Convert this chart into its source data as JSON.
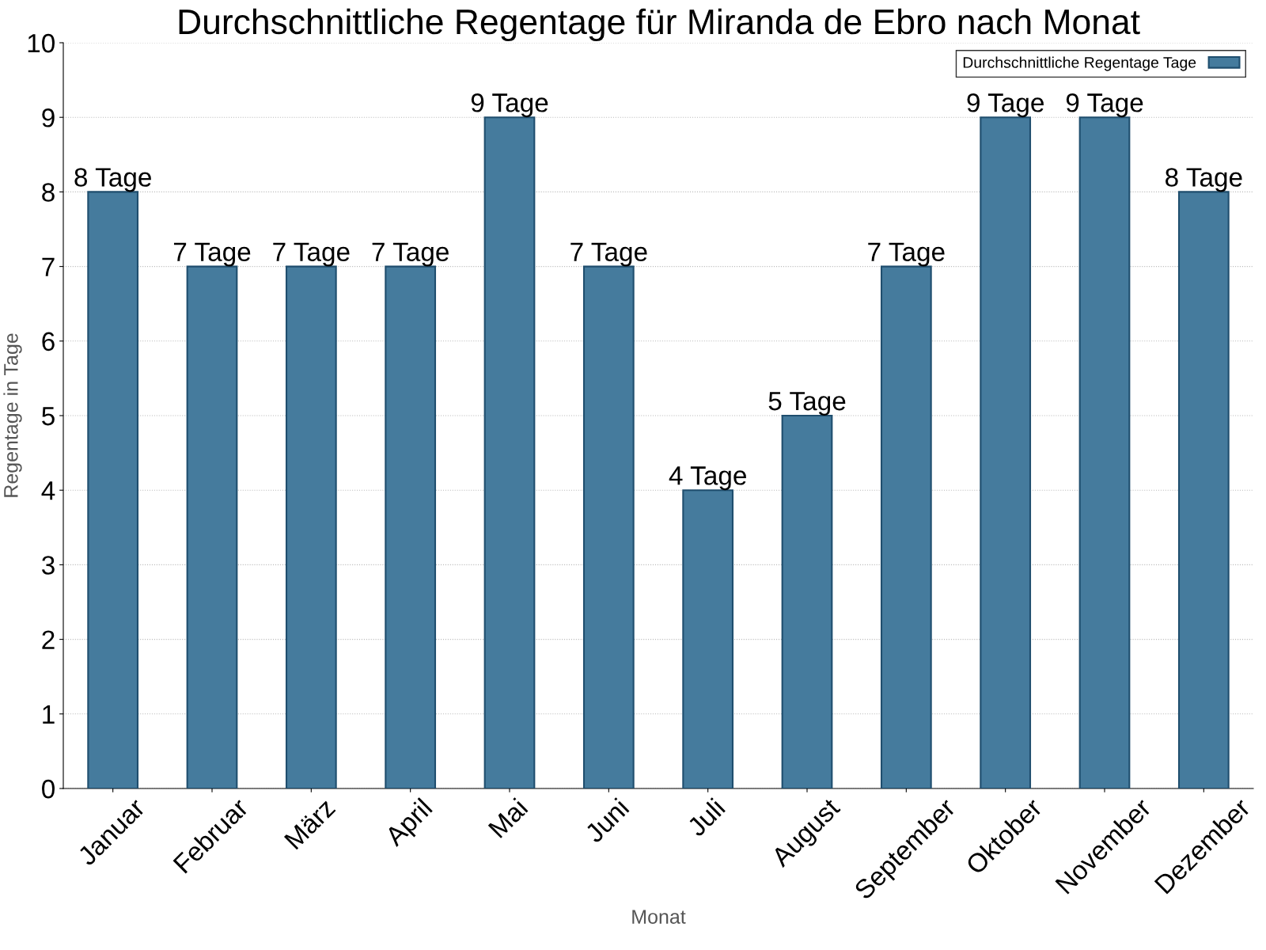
{
  "chart_data": {
    "type": "bar",
    "title": "Durchschnittliche Regentage für Miranda de Ebro nach Monat",
    "xlabel": "Monat",
    "ylabel": "Regentage in Tage",
    "categories": [
      "Januar",
      "Februar",
      "März",
      "April",
      "Mai",
      "Juni",
      "Juli",
      "August",
      "September",
      "Oktober",
      "November",
      "Dezember"
    ],
    "series": [
      {
        "name": "Durchschnittliche Regentage Tage",
        "color": "#457b9d",
        "values": [
          8,
          7,
          7,
          7,
          9,
          7,
          4,
          5,
          7,
          9,
          9,
          8
        ],
        "value_labels": [
          "8 Tage",
          "7 Tage",
          "7 Tage",
          "7 Tage",
          "9 Tage",
          "7 Tage",
          "4 Tage",
          "5 Tage",
          "7 Tage",
          "9 Tage",
          "9 Tage",
          "8 Tage"
        ]
      }
    ],
    "ylim": [
      0,
      10
    ],
    "yticks": [
      0,
      1,
      2,
      3,
      4,
      5,
      6,
      7,
      8,
      9,
      10
    ],
    "grid": "y",
    "legend": "top right"
  }
}
